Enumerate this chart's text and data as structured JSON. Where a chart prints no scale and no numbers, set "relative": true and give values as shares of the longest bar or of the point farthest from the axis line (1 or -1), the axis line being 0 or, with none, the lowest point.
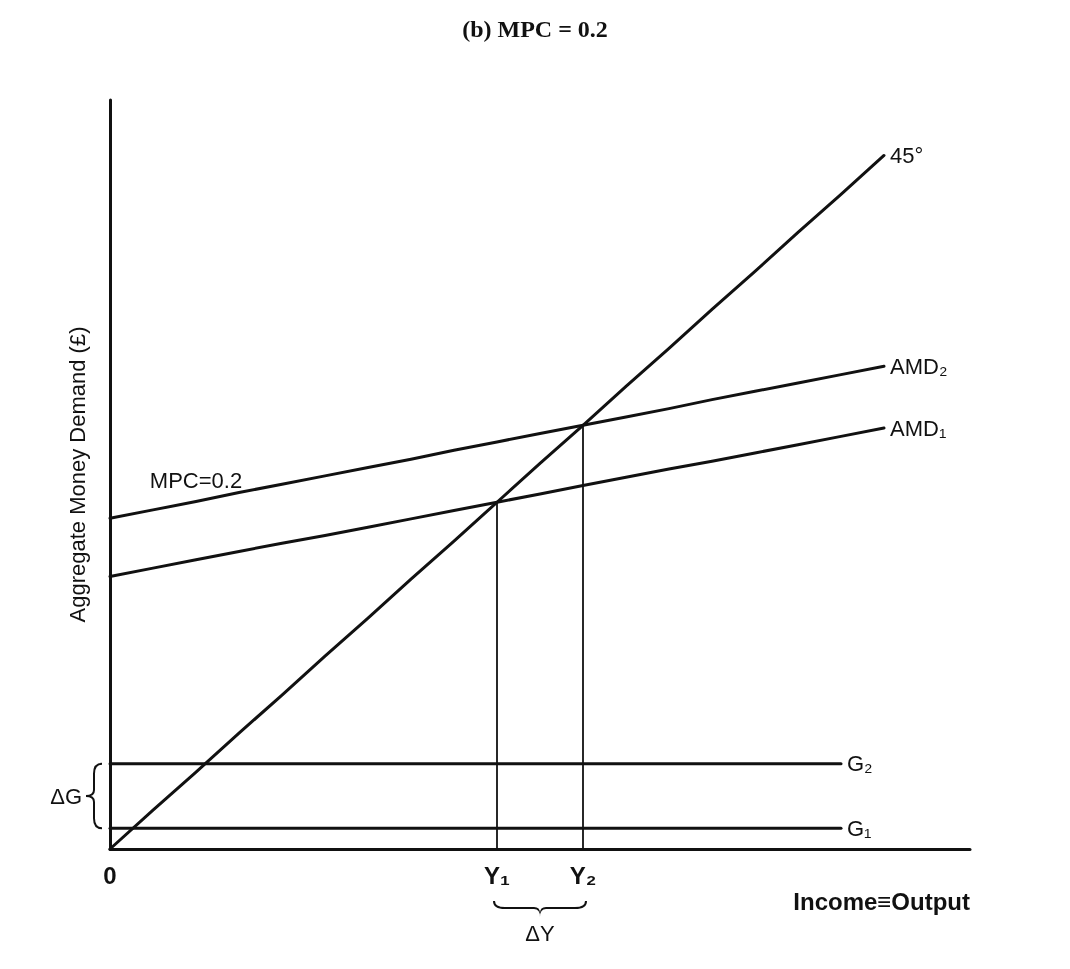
{
  "chart_data": {
    "type": "line",
    "title": "(b) MPC = 0.2",
    "xlabel": "Income≡Output",
    "ylabel": "Aggregate Money Demand (£)",
    "relative": true,
    "categories": [
      "0",
      null,
      null,
      null,
      null,
      null,
      null,
      null,
      null,
      "Y₁",
      null,
      "Y₂",
      null,
      null,
      null,
      null,
      null,
      null,
      null,
      null,
      null
    ],
    "series": [
      {
        "name": "45°",
        "color": "#111111",
        "values": [
          0,
          0.056,
          0.111,
          0.167,
          0.222,
          0.278,
          0.333,
          0.389,
          0.444,
          0.5,
          0.556,
          0.611,
          0.667,
          0.722,
          0.778,
          0.833,
          0.889,
          0.944,
          1,
          null,
          null
        ]
      },
      {
        "name": "AMD₂",
        "color": "#111111",
        "values": [
          0.477,
          0.489,
          0.501,
          0.514,
          0.526,
          0.538,
          0.55,
          0.562,
          0.575,
          0.587,
          0.599,
          0.611,
          0.623,
          0.635,
          0.648,
          0.66,
          0.672,
          0.684,
          0.696,
          null,
          null
        ]
      },
      {
        "name": "AMD₁",
        "color": "#111111",
        "values": [
          0.393,
          0.405,
          0.417,
          0.429,
          0.441,
          0.452,
          0.464,
          0.476,
          0.488,
          0.5,
          0.512,
          0.524,
          0.536,
          0.548,
          0.559,
          0.571,
          0.583,
          0.595,
          0.607,
          null,
          null
        ]
      },
      {
        "name": "G₂",
        "color": "#111111",
        "values": [
          0.123,
          0.123,
          0.123,
          0.123,
          0.123,
          0.123,
          0.123,
          0.123,
          0.123,
          0.123,
          0.123,
          0.123,
          0.123,
          0.123,
          0.123,
          0.123,
          0.123,
          0.123,
          null,
          null,
          null
        ]
      },
      {
        "name": "G₁",
        "color": "#111111",
        "values": [
          0.03,
          0.03,
          0.03,
          0.03,
          0.03,
          0.03,
          0.03,
          0.03,
          0.03,
          0.03,
          0.03,
          0.03,
          0.03,
          0.03,
          0.03,
          0.03,
          0.03,
          0.03,
          null,
          null,
          null
        ]
      },
      {
        "color": "#111111",
        "x": [
          "Y₁",
          "Y₁"
        ],
        "values": [
          0,
          0.5
        ]
      },
      {
        "color": "#111111",
        "x": [
          "Y₂",
          "Y₂"
        ],
        "values": [
          0,
          0.611
        ]
      }
    ],
    "annotations": [
      "MPC=0.2",
      "ΔG",
      "ΔY"
    ],
    "legend": false,
    "grid": false,
    "marker": "none",
    "line_style": "solid"
  }
}
